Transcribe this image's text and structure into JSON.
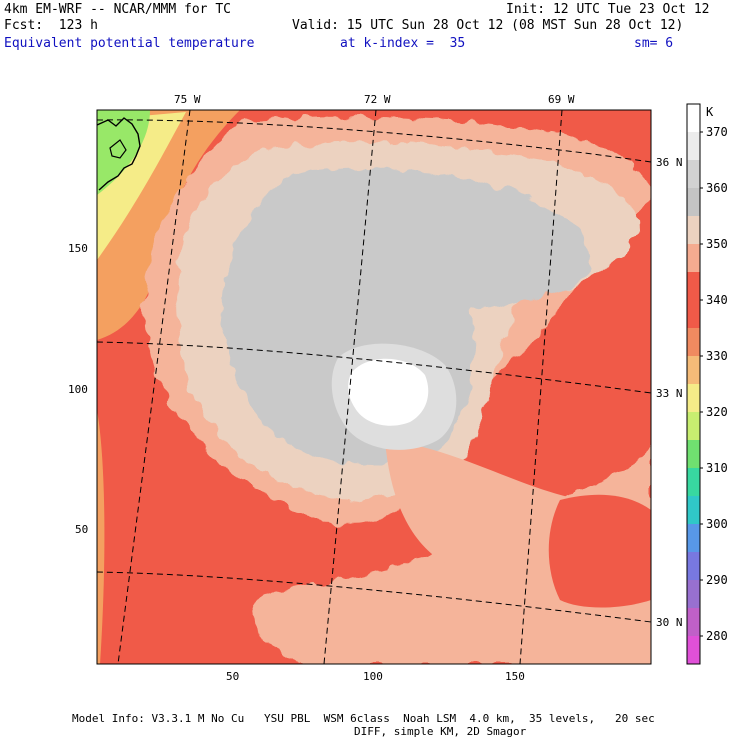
{
  "header": {
    "model": "4km EM-WRF -- NCAR/MMM for TC",
    "forecast": "Fcst:  123 h",
    "init": "Init: 12 UTC Tue 23 Oct 12",
    "valid": "Valid: 15 UTC Sun 28 Oct 12 (08 MST Sun 28 Oct 12)",
    "field": "Equivalent potential temperature",
    "level": "at k-index =  35",
    "smoothing": "sm= 6"
  },
  "map": {
    "longitude_labels": [
      "75 W",
      "72 W",
      "69 W"
    ],
    "latitude_labels": [
      "36 N",
      "33 N",
      "30 N"
    ],
    "x_ticks": [
      "50",
      "100",
      "150"
    ],
    "y_ticks": [
      "150",
      "100",
      "50"
    ],
    "colors": {
      "c330": "#f4a060",
      "c340": "#f05a48",
      "c350": "#f5b49a",
      "c355": "#ecd2c0",
      "c360": "#c9c9c9",
      "c365": "#dedede",
      "c370": "#ffffff",
      "land_green": "#98e868",
      "yellow": "#f5ec88"
    }
  },
  "colorbar": {
    "unit": "K",
    "labels": [
      "370",
      "360",
      "350",
      "340",
      "330",
      "320",
      "310",
      "300",
      "290",
      "280"
    ],
    "colors": [
      "#ffffff",
      "#ececec",
      "#d2d2d2",
      "#c4c4c4",
      "#ecd2c0",
      "#f5ab90",
      "#f05a48",
      "#f05a48",
      "#f08a60",
      "#f5bb78",
      "#f5ec88",
      "#c8ee70",
      "#70e070",
      "#38d8a0",
      "#30c8c8",
      "#5898e8",
      "#7878e0",
      "#9870d0",
      "#c060c8",
      "#e050d8"
    ]
  },
  "footer": {
    "line1": "Model Info: V3.3.1 M No Cu   YSU PBL  WSM 6class  Noah LSM  4.0 km,  35 levels,   20 sec",
    "line2": "DIFF, simple KM, 2D Smagor"
  }
}
